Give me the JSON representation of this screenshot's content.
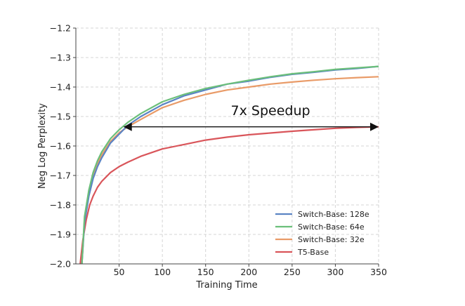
{
  "chart_data": {
    "type": "line",
    "title": "",
    "xlabel": "Training Time",
    "ylabel": "Neg Log Perplexity",
    "xlim": [
      0,
      350
    ],
    "ylim": [
      -2.0,
      -1.2
    ],
    "xticks": [
      50,
      100,
      150,
      200,
      250,
      300,
      350
    ],
    "yticks": [
      -2.0,
      -1.9,
      -1.8,
      -1.7,
      -1.6,
      -1.5,
      -1.4,
      -1.3,
      -1.2
    ],
    "xtick_labels": [
      "50",
      "100",
      "150",
      "200",
      "250",
      "300",
      "350"
    ],
    "ytick_labels": [
      "−2.0",
      "−1.9",
      "−1.8",
      "−1.7",
      "−1.6",
      "−1.5",
      "−1.4",
      "−1.3",
      "−1.2"
    ],
    "grid": true,
    "legend_position": "bottom-right",
    "series": [
      {
        "name": "Switch-Base: 128e",
        "color": "#5b84c4",
        "x": [
          7,
          10,
          15,
          20,
          25,
          30,
          40,
          50,
          60,
          75,
          100,
          125,
          150,
          175,
          200,
          225,
          250,
          275,
          300,
          325,
          350
        ],
        "y": [
          -2.0,
          -1.86,
          -1.77,
          -1.71,
          -1.67,
          -1.64,
          -1.59,
          -1.56,
          -1.53,
          -1.5,
          -1.46,
          -1.43,
          -1.41,
          -1.39,
          -1.38,
          -1.367,
          -1.357,
          -1.35,
          -1.342,
          -1.337,
          -1.33
        ]
      },
      {
        "name": "Switch-Base: 64e",
        "color": "#6bbf7a",
        "x": [
          7,
          10,
          15,
          20,
          25,
          30,
          40,
          50,
          60,
          75,
          100,
          125,
          150,
          175,
          200,
          225,
          250,
          275,
          300,
          325,
          350
        ],
        "y": [
          -2.0,
          -1.84,
          -1.75,
          -1.69,
          -1.65,
          -1.62,
          -1.575,
          -1.545,
          -1.52,
          -1.49,
          -1.45,
          -1.425,
          -1.405,
          -1.39,
          -1.377,
          -1.365,
          -1.355,
          -1.348,
          -1.34,
          -1.335,
          -1.33
        ]
      },
      {
        "name": "Switch-Base: 32e",
        "color": "#e99b68",
        "x": [
          7,
          10,
          15,
          20,
          25,
          30,
          40,
          50,
          60,
          75,
          100,
          125,
          150,
          175,
          200,
          225,
          250,
          275,
          300,
          325,
          350
        ],
        "y": [
          -2.0,
          -1.85,
          -1.76,
          -1.7,
          -1.66,
          -1.63,
          -1.585,
          -1.555,
          -1.535,
          -1.51,
          -1.47,
          -1.445,
          -1.425,
          -1.41,
          -1.4,
          -1.39,
          -1.383,
          -1.377,
          -1.372,
          -1.368,
          -1.365
        ]
      },
      {
        "name": "T5-Base",
        "color": "#d9555a",
        "x": [
          5,
          8,
          12,
          16,
          20,
          25,
          30,
          40,
          50,
          60,
          75,
          100,
          125,
          150,
          175,
          200,
          225,
          250,
          275,
          300,
          325,
          350
        ],
        "y": [
          -2.0,
          -1.92,
          -1.85,
          -1.8,
          -1.77,
          -1.74,
          -1.72,
          -1.69,
          -1.67,
          -1.655,
          -1.635,
          -1.61,
          -1.595,
          -1.58,
          -1.57,
          -1.562,
          -1.556,
          -1.55,
          -1.545,
          -1.54,
          -1.537,
          -1.535
        ]
      }
    ],
    "annotations": [
      {
        "text": "7x Speedup",
        "type": "double-arrow",
        "x_start": 55,
        "x_end": 350,
        "y": -1.535,
        "text_x": 225,
        "text_y": -1.495
      }
    ]
  }
}
